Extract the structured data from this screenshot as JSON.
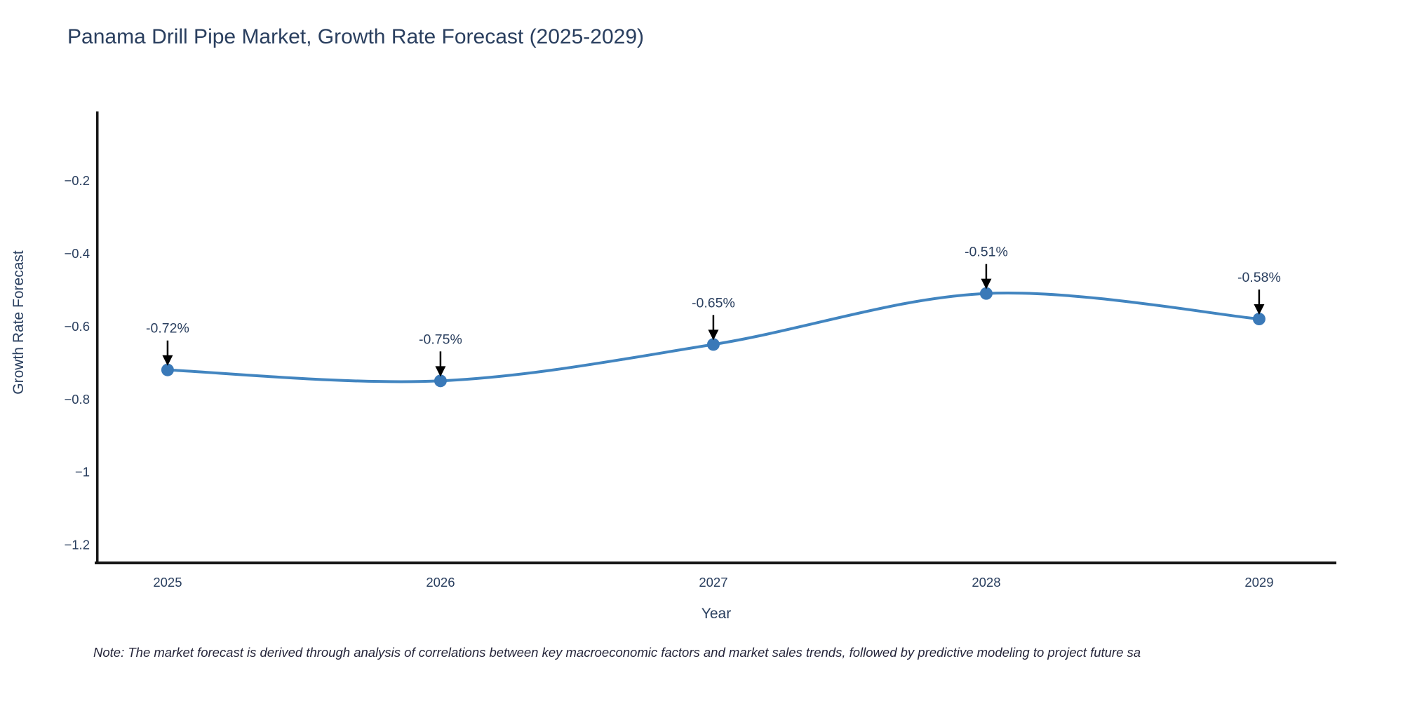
{
  "title": "Panama Drill Pipe Market, Growth Rate Forecast (2025-2029)",
  "note": "Note: The market forecast is derived through analysis of correlations between key macroeconomic factors and market sales trends, followed by predictive modeling to project future sa",
  "chart_data": {
    "type": "line",
    "line_shape": "spline",
    "title": "Panama Drill Pipe Market, Growth Rate Forecast (2025-2029)",
    "xlabel": "Year",
    "ylabel": "Growth Rate Forecast",
    "x": [
      2025,
      2026,
      2027,
      2028,
      2029
    ],
    "y": [
      -0.72,
      -0.75,
      -0.65,
      -0.51,
      -0.58
    ],
    "point_labels": [
      "-0.72%",
      "-0.75%",
      "-0.65%",
      "-0.51%",
      "-0.58%"
    ],
    "x_ticks": [
      {
        "value": 2025,
        "label": "2025"
      },
      {
        "value": 2026,
        "label": "2026"
      },
      {
        "value": 2027,
        "label": "2027"
      },
      {
        "value": 2028,
        "label": "2028"
      },
      {
        "value": 2029,
        "label": "2029"
      }
    ],
    "y_ticks": [
      {
        "value": -0.2,
        "label": "−0.2"
      },
      {
        "value": -0.4,
        "label": "−0.4"
      },
      {
        "value": -0.6,
        "label": "−0.6"
      },
      {
        "value": -0.8,
        "label": "−0.8"
      },
      {
        "value": -1.0,
        "label": "−1"
      },
      {
        "value": -1.2,
        "label": "−1.2"
      }
    ],
    "xlim": [
      2024.738,
      2029.283
    ],
    "ylim": [
      -1.25,
      -0.01
    ],
    "grid": false,
    "legend": false,
    "annotations_arrow": true,
    "colors": {
      "line": "#4285c0",
      "marker": "#3a79b8",
      "arrow": "#000000",
      "axis_line": "#161616",
      "text": "#2a3f5f"
    }
  }
}
